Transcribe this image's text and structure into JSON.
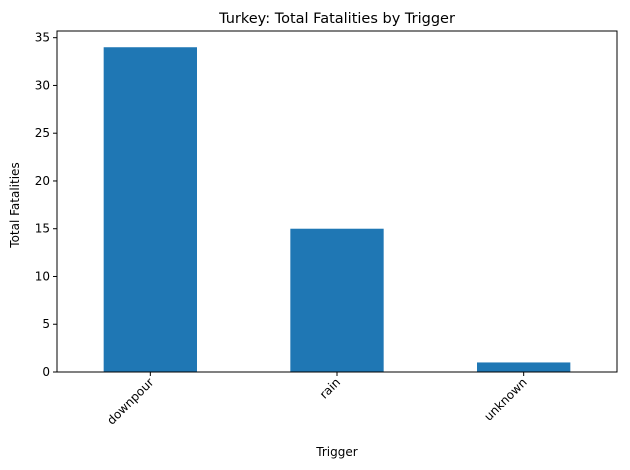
{
  "chart_data": {
    "type": "bar",
    "title": "Turkey: Total Fatalities by Trigger",
    "xlabel": "Trigger",
    "ylabel": "Total Fatalities",
    "categories": [
      "downpour",
      "rain",
      "unknown"
    ],
    "values": [
      34,
      15,
      1
    ],
    "ylim": [
      0,
      35.7
    ],
    "yticks": [
      0,
      5,
      10,
      15,
      20,
      25,
      30,
      35
    ],
    "xtick_rotation": 45,
    "grid": false,
    "legend": "none",
    "bar_color": "#1f77b4"
  }
}
